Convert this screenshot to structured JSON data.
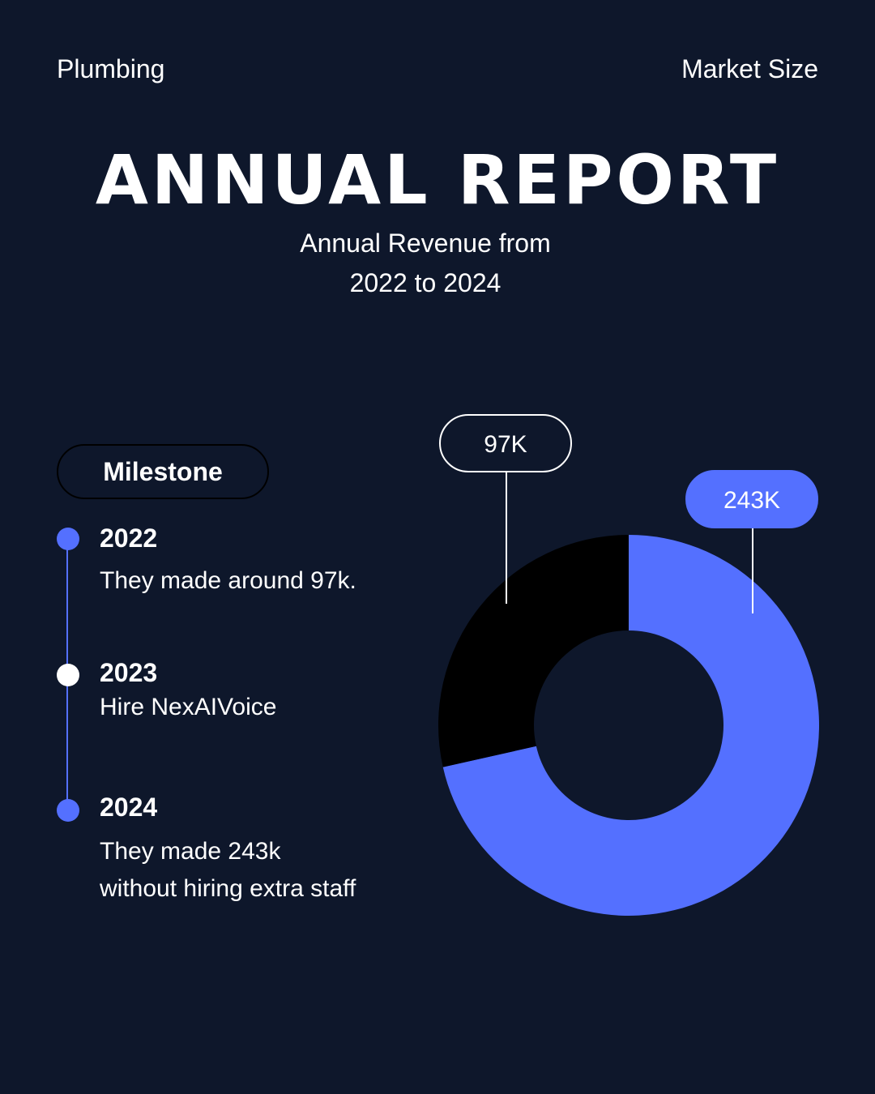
{
  "header": {
    "left_label": "Plumbing",
    "right_label": "Market Size",
    "title": "ANNUAL REPORT",
    "subtitle_line1": "Annual Revenue from",
    "subtitle_line2": "2022 to 2024"
  },
  "milestones": {
    "heading": "Milestone",
    "items": [
      {
        "year": "2022",
        "text": "They made around 97k."
      },
      {
        "year": "2023",
        "text": "Hire NexAIVoice"
      },
      {
        "year": "2024",
        "text": "They made 243k without hiring extra staff"
      }
    ]
  },
  "colors": {
    "background": "#0e172b",
    "accent": "#5470ff",
    "dark_segment": "#000000"
  },
  "chart_data": {
    "type": "pie",
    "variant": "donut",
    "slices": [
      {
        "label": "97K",
        "value": 97,
        "color": "#000000"
      },
      {
        "label": "243K",
        "value": 243,
        "color": "#5470ff"
      }
    ]
  }
}
